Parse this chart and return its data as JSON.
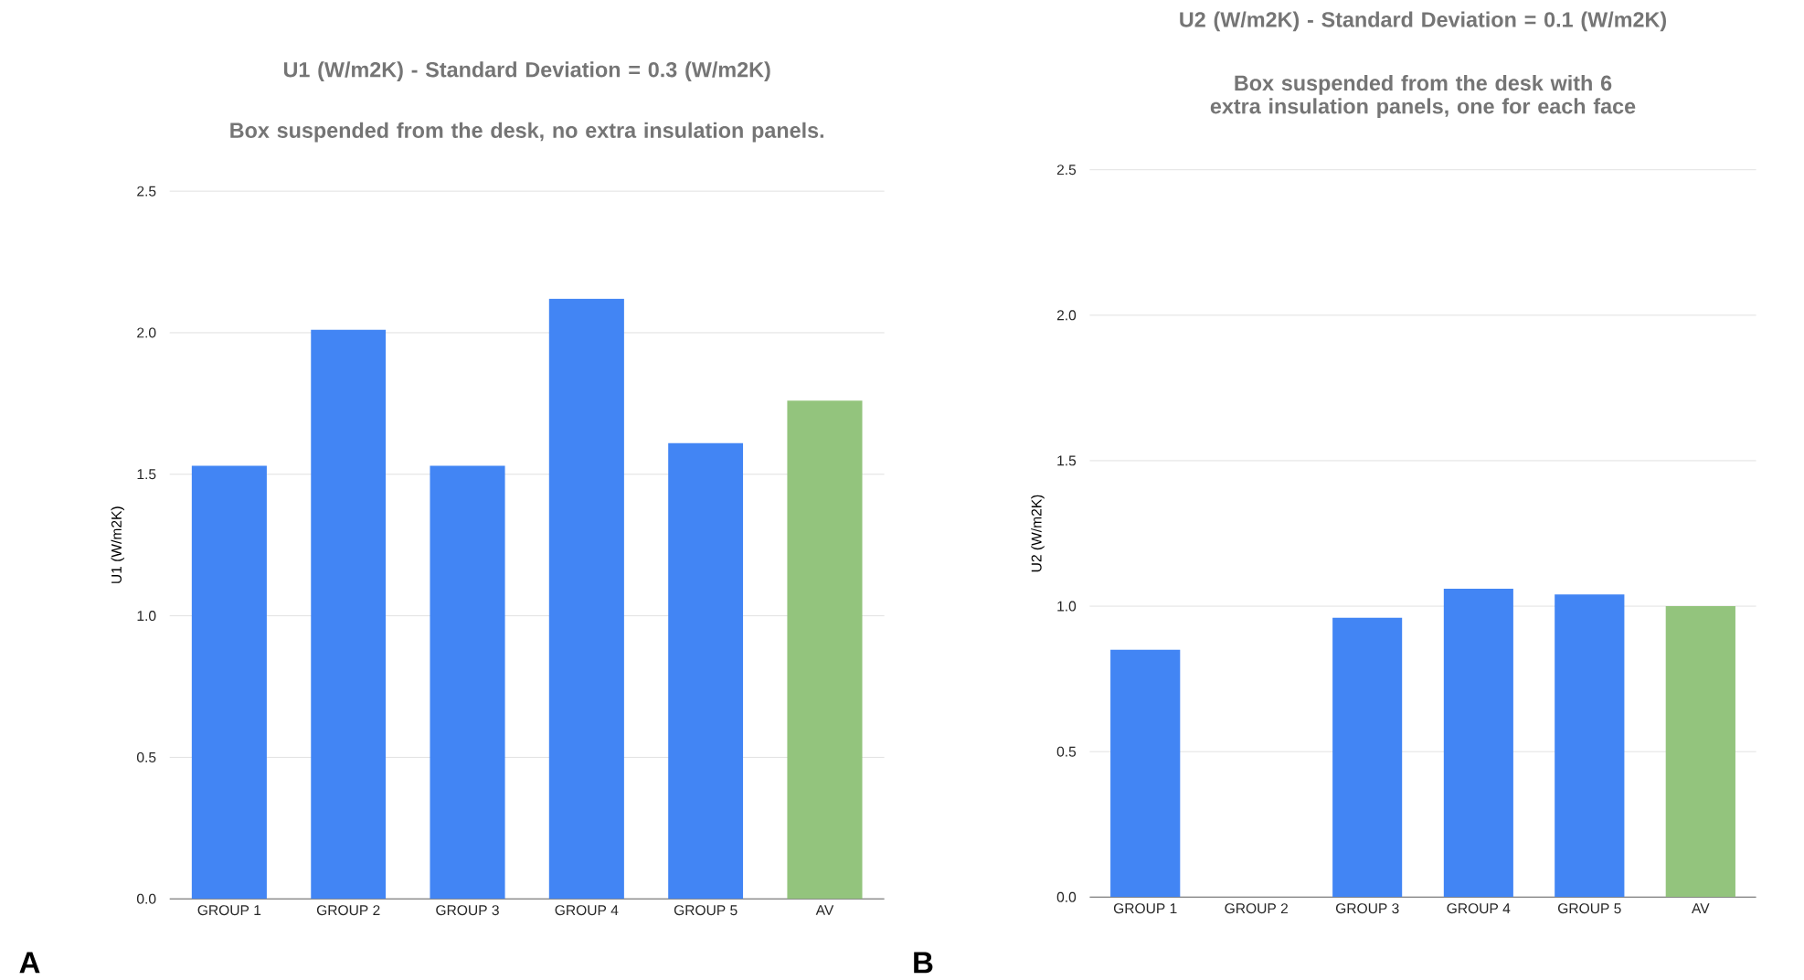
{
  "chart_data": [
    {
      "type": "bar",
      "title": "U1 (W/m2K) - Standard Deviation = 0.3 (W/m2K)",
      "subtitle": "Box suspended from the desk, no extra insulation panels.",
      "ylabel": "U1 (W/m2K)",
      "categories": [
        "GROUP 1",
        "GROUP 2",
        "GROUP 3",
        "GROUP 4",
        "GROUP 5",
        "AV"
      ],
      "values": [
        1.53,
        2.01,
        1.53,
        2.12,
        1.61,
        1.76
      ],
      "colors": [
        "#4285f4",
        "#4285f4",
        "#4285f4",
        "#4285f4",
        "#4285f4",
        "#93c47d"
      ],
      "ylim": [
        0,
        2.5
      ],
      "yticks": [
        {
          "value": 0,
          "label": "0.0"
        },
        0.5,
        {
          "value": 1,
          "label": "1.0"
        },
        1.5,
        {
          "value": 2,
          "label": "2.0"
        },
        2.5
      ],
      "grid": "y",
      "annotations": [
        "A"
      ]
    },
    {
      "type": "bar",
      "title": "U2 (W/m2K) - Standard Deviation = 0.1 (W/m2K)",
      "subtitle": "Box suspended from the desk with 6 extra insulation panels, one for each face",
      "ylabel": "U2 (W/m2K)",
      "categories": [
        "GROUP 1",
        "GROUP 2",
        "GROUP 3",
        "GROUP 4",
        "GROUP 5",
        "AV"
      ],
      "values": [
        0.85,
        null,
        0.96,
        1.06,
        1.04,
        1.0
      ],
      "colors": [
        "#4285f4",
        "#4285f4",
        "#4285f4",
        "#4285f4",
        "#4285f4",
        "#93c47d"
      ],
      "ylim": [
        0,
        2.5
      ],
      "yticks": [
        {
          "value": 0,
          "label": "0.0"
        },
        0.5,
        {
          "value": 1,
          "label": "1.0"
        },
        1.5,
        {
          "value": 2,
          "label": "2.0"
        },
        2.5
      ],
      "grid": "y",
      "annotations": [
        "B"
      ]
    }
  ]
}
